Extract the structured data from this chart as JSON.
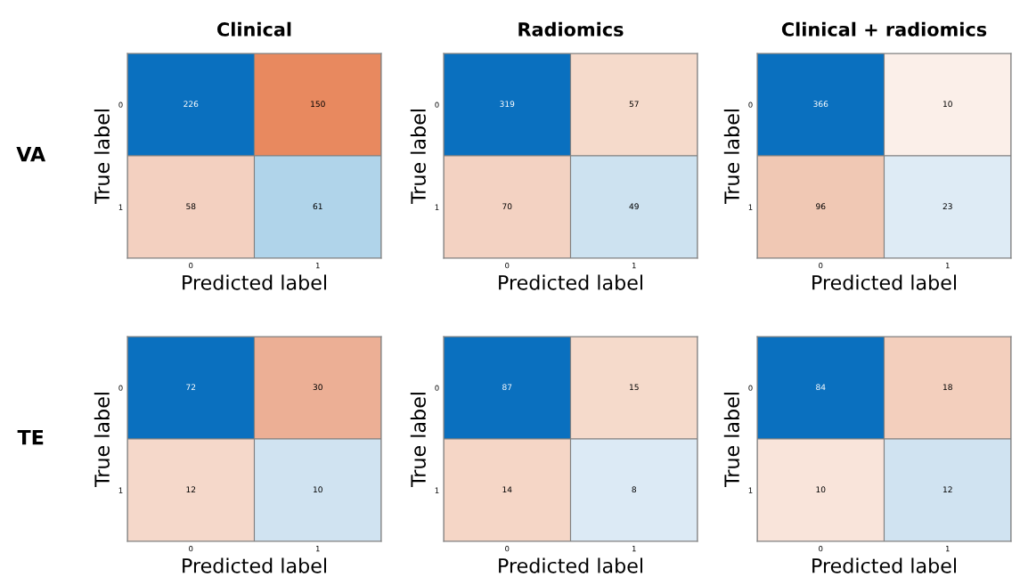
{
  "chart_data": [
    {
      "type": "heatmap",
      "title": "Clinical",
      "xlabel": "Predicted label",
      "ylabel": "True label",
      "annotations": [
        "VA"
      ],
      "categories": [
        "0",
        "1"
      ],
      "y_categories": [
        "0",
        "1"
      ],
      "cells": [
        [
          226,
          150
        ],
        [
          58,
          61
        ]
      ],
      "colors": [
        [
          "#0a70bf",
          "#e8895f"
        ],
        [
          "#f3d0c0",
          "#b0d4ea"
        ]
      ],
      "data_labels": true
    },
    {
      "type": "heatmap",
      "title": "Radiomics",
      "xlabel": "Predicted label",
      "ylabel": "True label",
      "categories": [
        "0",
        "1"
      ],
      "y_categories": [
        "0",
        "1"
      ],
      "cells": [
        [
          319,
          57
        ],
        [
          70,
          49
        ]
      ],
      "colors": [
        [
          "#0a70bf",
          "#f5dacb"
        ],
        [
          "#f3d2c2",
          "#cde2f0"
        ]
      ],
      "data_labels": true
    },
    {
      "type": "heatmap",
      "title": "Clinical + radiomics",
      "xlabel": "Predicted label",
      "ylabel": "True label",
      "categories": [
        "0",
        "1"
      ],
      "y_categories": [
        "0",
        "1"
      ],
      "cells": [
        [
          366,
          10
        ],
        [
          96,
          23
        ]
      ],
      "colors": [
        [
          "#0a70bf",
          "#fbefe9"
        ],
        [
          "#f0c8b4",
          "#deebf5"
        ]
      ],
      "data_labels": true
    },
    {
      "type": "heatmap",
      "xlabel": "Predicted label",
      "ylabel": "True label",
      "annotations": [
        "TE"
      ],
      "categories": [
        "0",
        "1"
      ],
      "y_categories": [
        "0",
        "1"
      ],
      "cells": [
        [
          72,
          30
        ],
        [
          12,
          10
        ]
      ],
      "colors": [
        [
          "#0a70bf",
          "#ecaf95"
        ],
        [
          "#f5d8ca",
          "#d0e3f1"
        ]
      ],
      "data_labels": true
    },
    {
      "type": "heatmap",
      "xlabel": "Predicted label",
      "ylabel": "True label",
      "categories": [
        "0",
        "1"
      ],
      "y_categories": [
        "0",
        "1"
      ],
      "cells": [
        [
          87,
          15
        ],
        [
          14,
          8
        ]
      ],
      "colors": [
        [
          "#0a70bf",
          "#f5dacb"
        ],
        [
          "#f5d6c6",
          "#dceaf5"
        ]
      ],
      "data_labels": true
    },
    {
      "type": "heatmap",
      "xlabel": "Predicted label",
      "ylabel": "True label",
      "categories": [
        "0",
        "1"
      ],
      "y_categories": [
        "0",
        "1"
      ],
      "cells": [
        [
          84,
          18
        ],
        [
          10,
          12
        ]
      ],
      "colors": [
        [
          "#0a70bf",
          "#f3cfbd"
        ],
        [
          "#f9e4da",
          "#d0e3f1"
        ]
      ],
      "data_labels": true
    }
  ]
}
